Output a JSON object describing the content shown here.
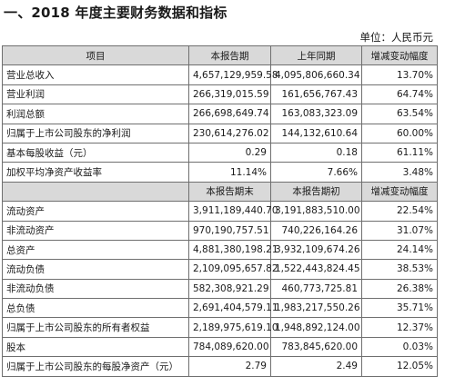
{
  "title": "一、2018 年度主要财务数据和指标",
  "unit": "单位：人民币元",
  "header1": [
    "项目",
    "本报告期",
    "上年同期",
    "增减变动幅度"
  ],
  "rows1": [
    [
      "营业总收入",
      "4,657,129,959.58",
      "4,095,806,660.34",
      "13.70%"
    ],
    [
      "营业利润",
      "266,319,015.59",
      "161,656,767.43",
      "64.74%"
    ],
    [
      "利润总额",
      "266,698,649.74",
      "163,083,323.09",
      "63.54%"
    ],
    [
      "归属于上市公司股东的净利润",
      "230,614,276.02",
      "144,132,610.64",
      "60.00%"
    ],
    [
      "基本每股收益（元）",
      "0.29",
      "0.18",
      "61.11%"
    ],
    [
      "加权平均净资产收益率",
      "11.14%",
      "7.66%",
      "3.48%"
    ]
  ],
  "header2": [
    "",
    "本报告期末",
    "本报告期初",
    "增减变动幅度"
  ],
  "rows2": [
    [
      "流动资产",
      "3,911,189,440.70",
      "3,191,883,510.00",
      "22.54%"
    ],
    [
      "非流动资产",
      "970,190,757.51",
      "740,226,164.26",
      "31.07%"
    ],
    [
      "总资产",
      "4,881,380,198.21",
      "3,932,109,674.26",
      "24.14%"
    ],
    [
      "流动负债",
      "2,109,095,657.82",
      "1,522,443,824.45",
      "38.53%"
    ],
    [
      "非流动负债",
      "582,308,921.29",
      "460,773,725.81",
      "26.38%"
    ],
    [
      "总负债",
      "2,691,404,579.11",
      "1,983,217,550.26",
      "35.71%"
    ],
    [
      "归属于上市公司股东的所有者权益",
      "2,189,975,619.10",
      "1,948,892,124.00",
      "12.37%"
    ],
    [
      "股本",
      "784,089,620.00",
      "783,845,620.00",
      "0.03%"
    ],
    [
      "归属于上市公司股东的每股净资产（元）",
      "2.79",
      "2.49",
      "12.05%"
    ]
  ]
}
